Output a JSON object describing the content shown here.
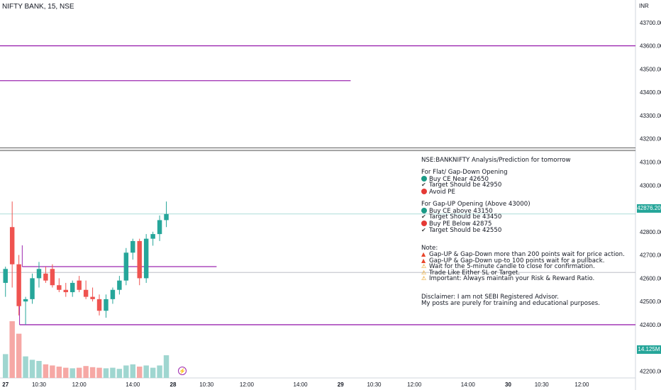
{
  "header": {
    "symbol": "NIFTY BANK, 15, NSE",
    "currency": "INR"
  },
  "price_badge": "42876.20",
  "volume_badge": "14.125M",
  "colors": {
    "up": "#26a69a",
    "down": "#ef5350",
    "vol_up": "#9fd6d0",
    "vol_down": "#f6a8a5",
    "level": "#9c27b0",
    "grid": "#e6e9ef"
  },
  "notes": [
    {
      "text": "NSE:BANKNIFTY Analysis/Prediction for tomorrow"
    },
    {
      "gap": true
    },
    {
      "text": "For Flat/ Gap-Down Opening"
    },
    {
      "icon": "green-circle-icon",
      "text": "Buy CE Near 42650"
    },
    {
      "icon": "check-icon",
      "text": "Target Should be 42950"
    },
    {
      "icon": "red-circle-icon",
      "text": "Avoid PE"
    },
    {
      "gap": true
    },
    {
      "text": "For Gap-UP Opening (Above 43000)"
    },
    {
      "icon": "green-circle-icon",
      "text": "Buy CE above 43150"
    },
    {
      "icon": "check-icon",
      "text": "Target Should be 43450"
    },
    {
      "icon": "red-circle-icon",
      "text": "Buy PE Below 42875"
    },
    {
      "icon": "check-icon",
      "text": "Target Should be 42550"
    },
    {
      "gap": true
    },
    {
      "gap": true
    },
    {
      "text": "Note:"
    },
    {
      "icon": "fire-icon",
      "text": "Gap-UP & Gap-Down more than 200 points wait for price action."
    },
    {
      "icon": "fire-icon",
      "text": "Gap-UP & Gap-Down up-to 100 points wait for a pullback."
    },
    {
      "icon": "warning-icon",
      "text": "Wait for the 5-minute candle to close for confirmation."
    },
    {
      "icon": "warning-icon",
      "text": "Trade Like Either SL or Target."
    },
    {
      "icon": "warning-icon",
      "text": "Important: Always maintain your Risk & Reward Ratio."
    },
    {
      "gap": true
    },
    {
      "gap": true
    },
    {
      "text": "Disclaimer: I am not SEBI Registered Advisor."
    },
    {
      "text": "My posts are purely for training and educational purposes."
    }
  ],
  "chart_data": {
    "type": "candlestick",
    "y_axis": {
      "min": 42150,
      "max": 43780,
      "ticks": [
        42200,
        42300,
        42400,
        42500,
        42600,
        42700,
        42800,
        42900,
        43000,
        43100,
        43200,
        43300,
        43400,
        43500,
        43600,
        43700
      ],
      "tick_labels": [
        "42200.00",
        "42300.00",
        "42400.00",
        "42500.00",
        "42600.00",
        "42700.00",
        "42800.00",
        "42900.00",
        "43000.00",
        "43100.00",
        "43200.00",
        "43300.00",
        "43400.00",
        "43500.00",
        "43600.00",
        "43700.00"
      ]
    },
    "x_axis": {
      "ticks": [
        {
          "label": "27",
          "bar": 0
        },
        {
          "label": "10:30",
          "bar": 5
        },
        {
          "label": "12:00",
          "bar": 11
        },
        {
          "label": "14:00",
          "bar": 19
        },
        {
          "label": "28",
          "bar": 25
        },
        {
          "label": "10:30",
          "bar": 30
        },
        {
          "label": "12:00",
          "bar": 36
        },
        {
          "label": "14:00",
          "bar": 44
        },
        {
          "label": "29",
          "bar": 50
        },
        {
          "label": "10:30",
          "bar": 55
        },
        {
          "label": "12:00",
          "bar": 61
        },
        {
          "label": "14:00",
          "bar": 69
        },
        {
          "label": "30",
          "bar": 75
        },
        {
          "label": "10:30",
          "bar": 80
        },
        {
          "label": "12:00",
          "bar": 86
        }
      ]
    },
    "candles": [
      {
        "o": 42580,
        "h": 42650,
        "l": 42520,
        "c": 42640
      },
      {
        "o": 42820,
        "h": 42930,
        "l": 42560,
        "c": 42660
      },
      {
        "o": 42660,
        "h": 42700,
        "l": 42440,
        "c": 42480
      },
      {
        "o": 42500,
        "h": 42520,
        "l": 42400,
        "c": 42510
      },
      {
        "o": 42510,
        "h": 42620,
        "l": 42490,
        "c": 42600
      },
      {
        "o": 42600,
        "h": 42670,
        "l": 42560,
        "c": 42640
      },
      {
        "o": 42620,
        "h": 42650,
        "l": 42580,
        "c": 42590
      },
      {
        "o": 42640,
        "h": 42660,
        "l": 42560,
        "c": 42570
      },
      {
        "o": 42570,
        "h": 42600,
        "l": 42540,
        "c": 42550
      },
      {
        "o": 42550,
        "h": 42580,
        "l": 42520,
        "c": 42540
      },
      {
        "o": 42540,
        "h": 42590,
        "l": 42520,
        "c": 42580
      },
      {
        "o": 42590,
        "h": 42610,
        "l": 42540,
        "c": 42550
      },
      {
        "o": 42550,
        "h": 42590,
        "l": 42510,
        "c": 42520
      },
      {
        "o": 42520,
        "h": 42560,
        "l": 42500,
        "c": 42510
      },
      {
        "o": 42510,
        "h": 42530,
        "l": 42440,
        "c": 42460
      },
      {
        "o": 42460,
        "h": 42530,
        "l": 42430,
        "c": 42510
      },
      {
        "o": 42510,
        "h": 42560,
        "l": 42490,
        "c": 42550
      },
      {
        "o": 42550,
        "h": 42610,
        "l": 42530,
        "c": 42590
      },
      {
        "o": 42590,
        "h": 42730,
        "l": 42570,
        "c": 42710
      },
      {
        "o": 42710,
        "h": 42770,
        "l": 42680,
        "c": 42760
      },
      {
        "o": 42760,
        "h": 42770,
        "l": 42570,
        "c": 42600
      },
      {
        "o": 42600,
        "h": 42790,
        "l": 42580,
        "c": 42770
      },
      {
        "o": 42770,
        "h": 42800,
        "l": 42740,
        "c": 42790
      },
      {
        "o": 42790,
        "h": 42870,
        "l": 42760,
        "c": 42850
      },
      {
        "o": 42850,
        "h": 42930,
        "l": 42820,
        "c": 42876.2
      }
    ],
    "volume": [
      0.42,
      1.0,
      0.78,
      0.38,
      0.32,
      0.3,
      0.24,
      0.22,
      0.2,
      0.18,
      0.17,
      0.18,
      0.21,
      0.19,
      0.18,
      0.17,
      0.18,
      0.16,
      0.22,
      0.24,
      0.2,
      0.22,
      0.18,
      0.22,
      0.4
    ],
    "levels": [
      {
        "price": 43600,
        "start_bar": -1,
        "end": "axis"
      },
      {
        "price": 43450,
        "start_bar": -1,
        "end_bar": 52
      },
      {
        "price": 43155,
        "start_bar": -1,
        "end": "axis",
        "style": "double-gray"
      },
      {
        "price": 42650,
        "start_bar": 3,
        "end_bar": 32
      },
      {
        "price": 42400,
        "start_bar": 2.6,
        "end": "axis"
      }
    ],
    "current_price_line": 42876.2,
    "secondary_line": 42625
  }
}
